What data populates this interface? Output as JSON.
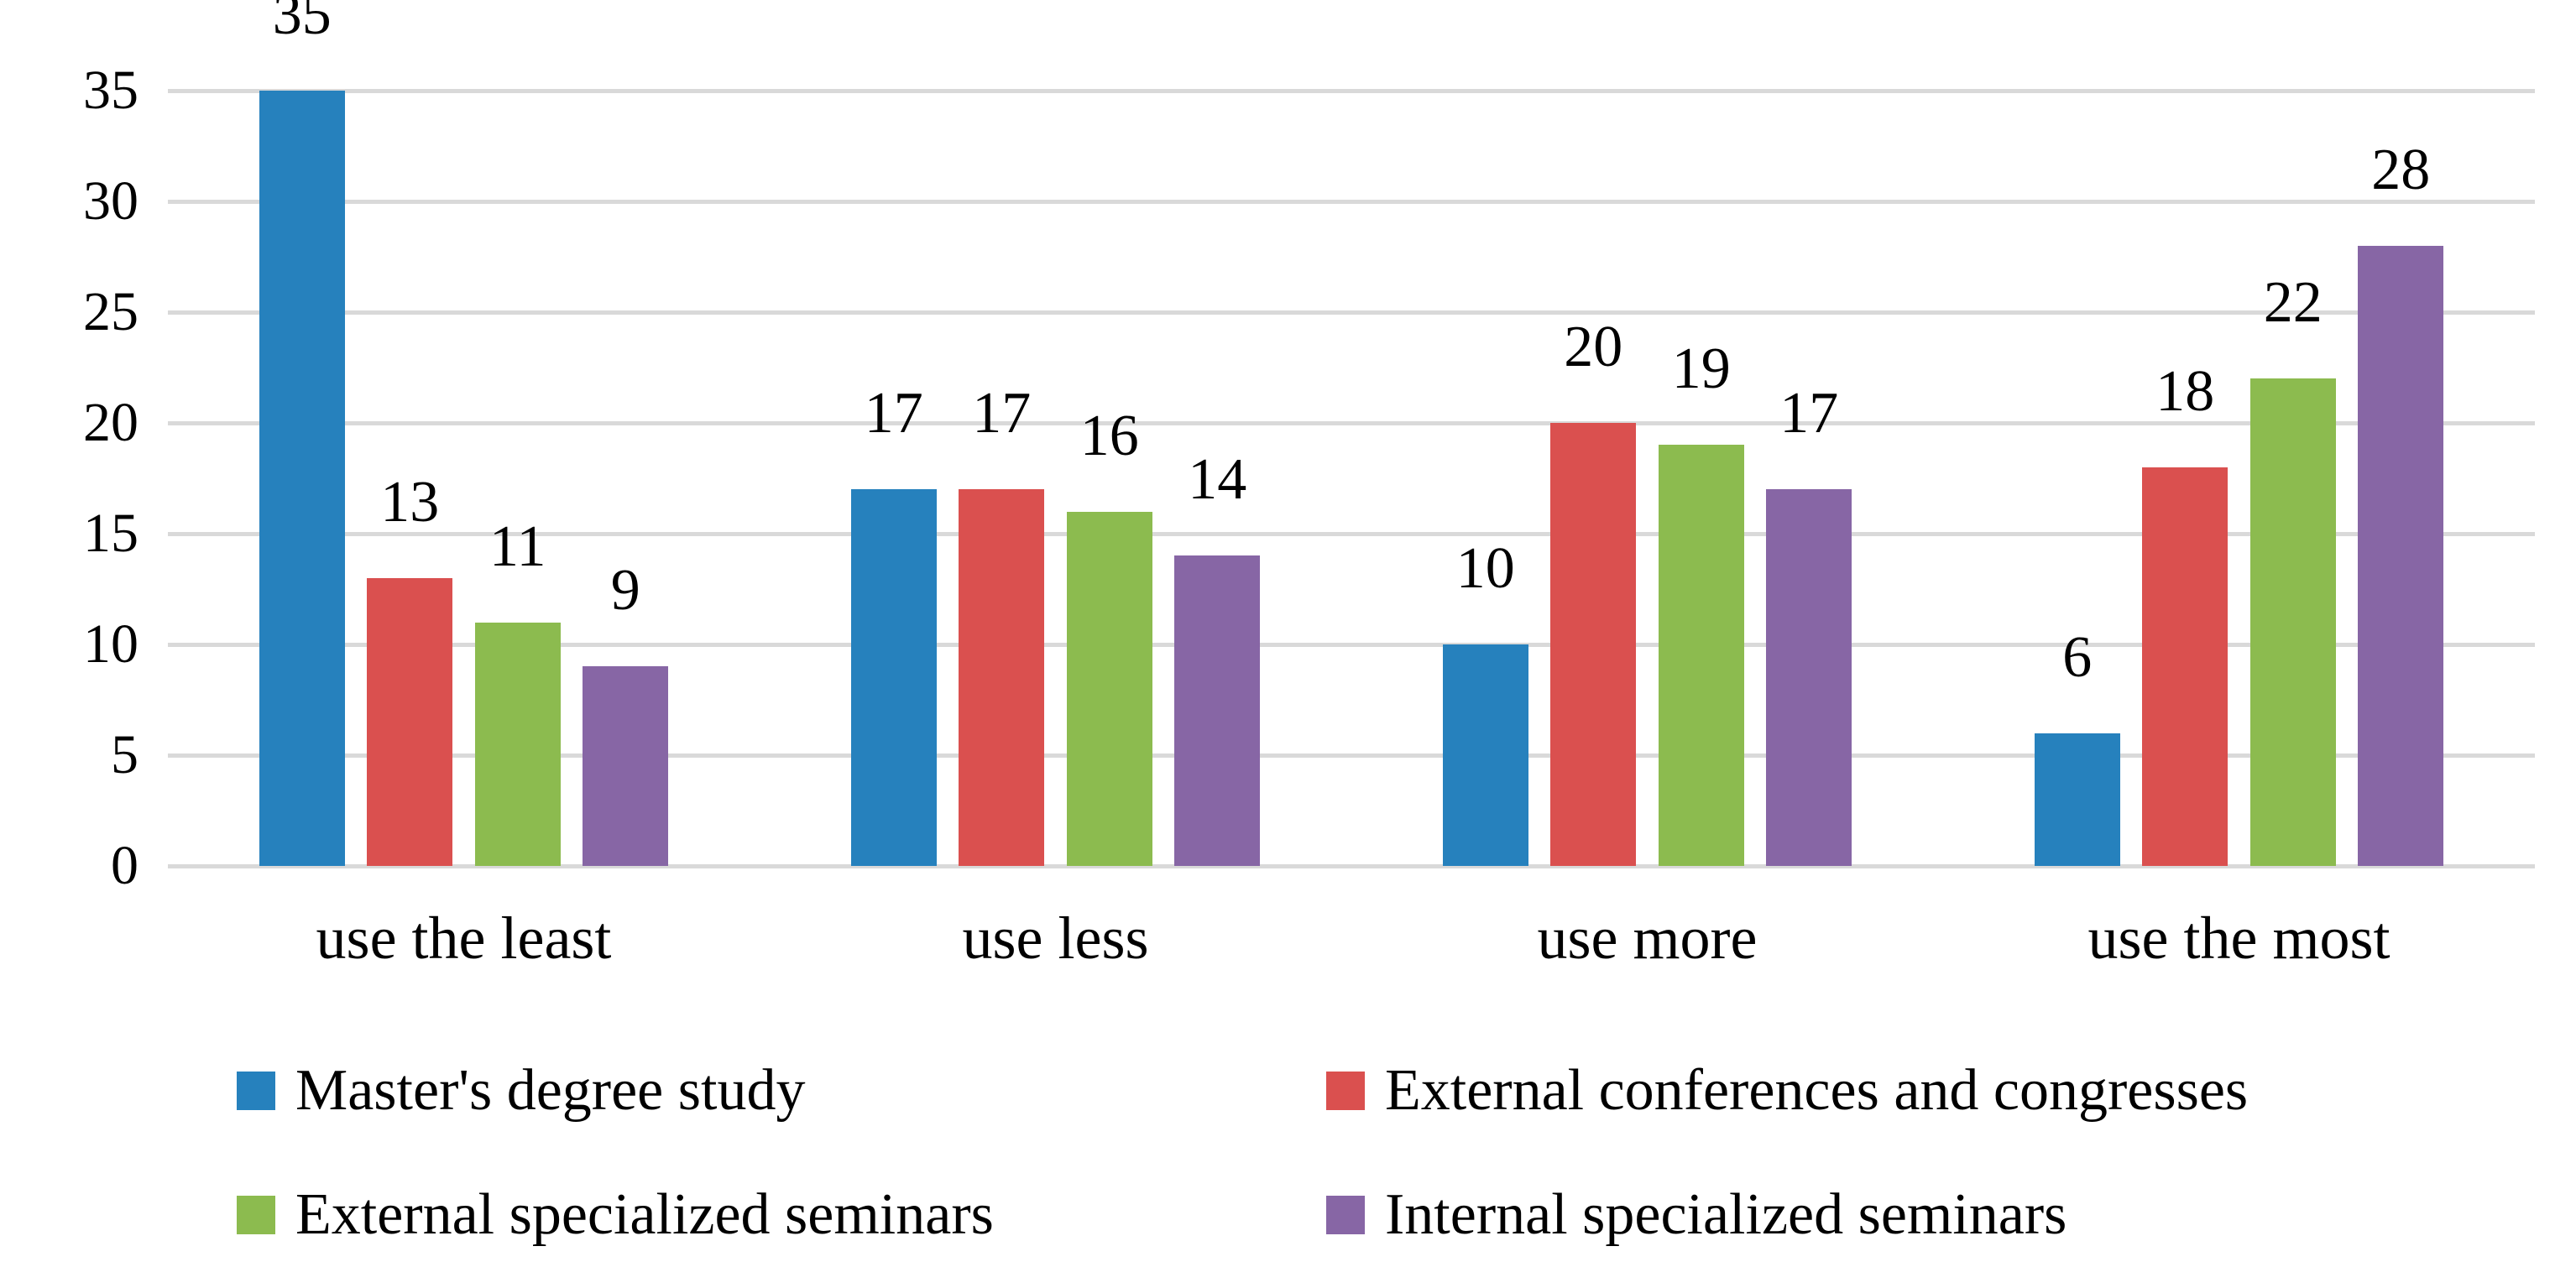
{
  "colors": {
    "background": "#FFFFFF",
    "text": "#000000",
    "gridline": "#D9D9D9",
    "series": [
      "#2681BD",
      "#DA504F",
      "#8CBB4F",
      "#8766A5"
    ]
  },
  "chart_data": {
    "type": "bar",
    "title": "",
    "xlabel": "",
    "ylabel": "",
    "categories": [
      "use the least",
      "use less",
      "use more",
      "use the most"
    ],
    "series": [
      {
        "name": "Master's degree study",
        "values": [
          35,
          17,
          10,
          6
        ]
      },
      {
        "name": "External conferences and congresses",
        "values": [
          13,
          17,
          20,
          18
        ]
      },
      {
        "name": "External specialized seminars",
        "values": [
          11,
          16,
          19,
          22
        ]
      },
      {
        "name": "Internal specialized seminars",
        "values": [
          9,
          14,
          17,
          28
        ]
      }
    ],
    "ylim": [
      0,
      35
    ],
    "yticks": [
      0,
      5,
      10,
      15,
      20,
      25,
      30,
      35
    ],
    "grid": true,
    "data_labels": true,
    "legend_position": "bottom"
  }
}
